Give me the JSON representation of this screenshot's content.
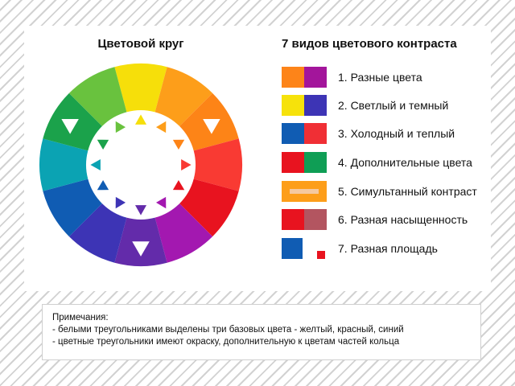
{
  "wheel": {
    "title": "Цветовой круг",
    "segments": [
      "#F6DF0A",
      "#FD9E1A",
      "#FD8417",
      "#F93A33",
      "#E8131F",
      "#A318B0",
      "#632BAA",
      "#3D34B5",
      "#105CB3",
      "#0BA3B3",
      "#1BA24B",
      "#69C23E"
    ],
    "inner_markers": [
      "#632BAA",
      "#3D34B5",
      "#105CB3",
      "#0BA3B3",
      "#1BA24B",
      "#69C23E",
      "#F6DF0A",
      "#FD9E1A",
      "#FD8417",
      "#F93A33",
      "#E8131F",
      "#A318B0"
    ],
    "base_markers": [
      0,
      4,
      8
    ]
  },
  "legend": {
    "title": "7 видов цветового контраста",
    "items": [
      {
        "label": "1. Разные цвета",
        "swatch": "pair",
        "colors": [
          "#FD8419",
          "#A3159B"
        ]
      },
      {
        "label": "2. Светлый и темный",
        "swatch": "pair",
        "colors": [
          "#F6E20B",
          "#3D34B5"
        ]
      },
      {
        "label": "3. Холодный и теплый",
        "swatch": "pair",
        "colors": [
          "#105CB3",
          "#F02F35"
        ]
      },
      {
        "label": "4. Дополнительные цвета",
        "swatch": "pair",
        "colors": [
          "#E8131F",
          "#0F9E55"
        ]
      },
      {
        "label": "5. Симультанный контраст",
        "swatch": "simultaneous",
        "colors": [
          "#FD9E1A",
          "#F5C9A0"
        ]
      },
      {
        "label": "6. Разная насыщенность",
        "swatch": "pair",
        "colors": [
          "#E8131F",
          "#B35560"
        ]
      },
      {
        "label": "7. Разная площадь",
        "swatch": "area",
        "colors": [
          "#105CB3",
          "#E8131F"
        ]
      }
    ]
  },
  "notes": {
    "heading": "Примечания:",
    "line1": "- белыми треугольниками выделены три базовых цвета - желтый, красный, синий",
    "line2": "- цветные треугольники имеют окраску, дополнительную к цветам частей кольца"
  }
}
